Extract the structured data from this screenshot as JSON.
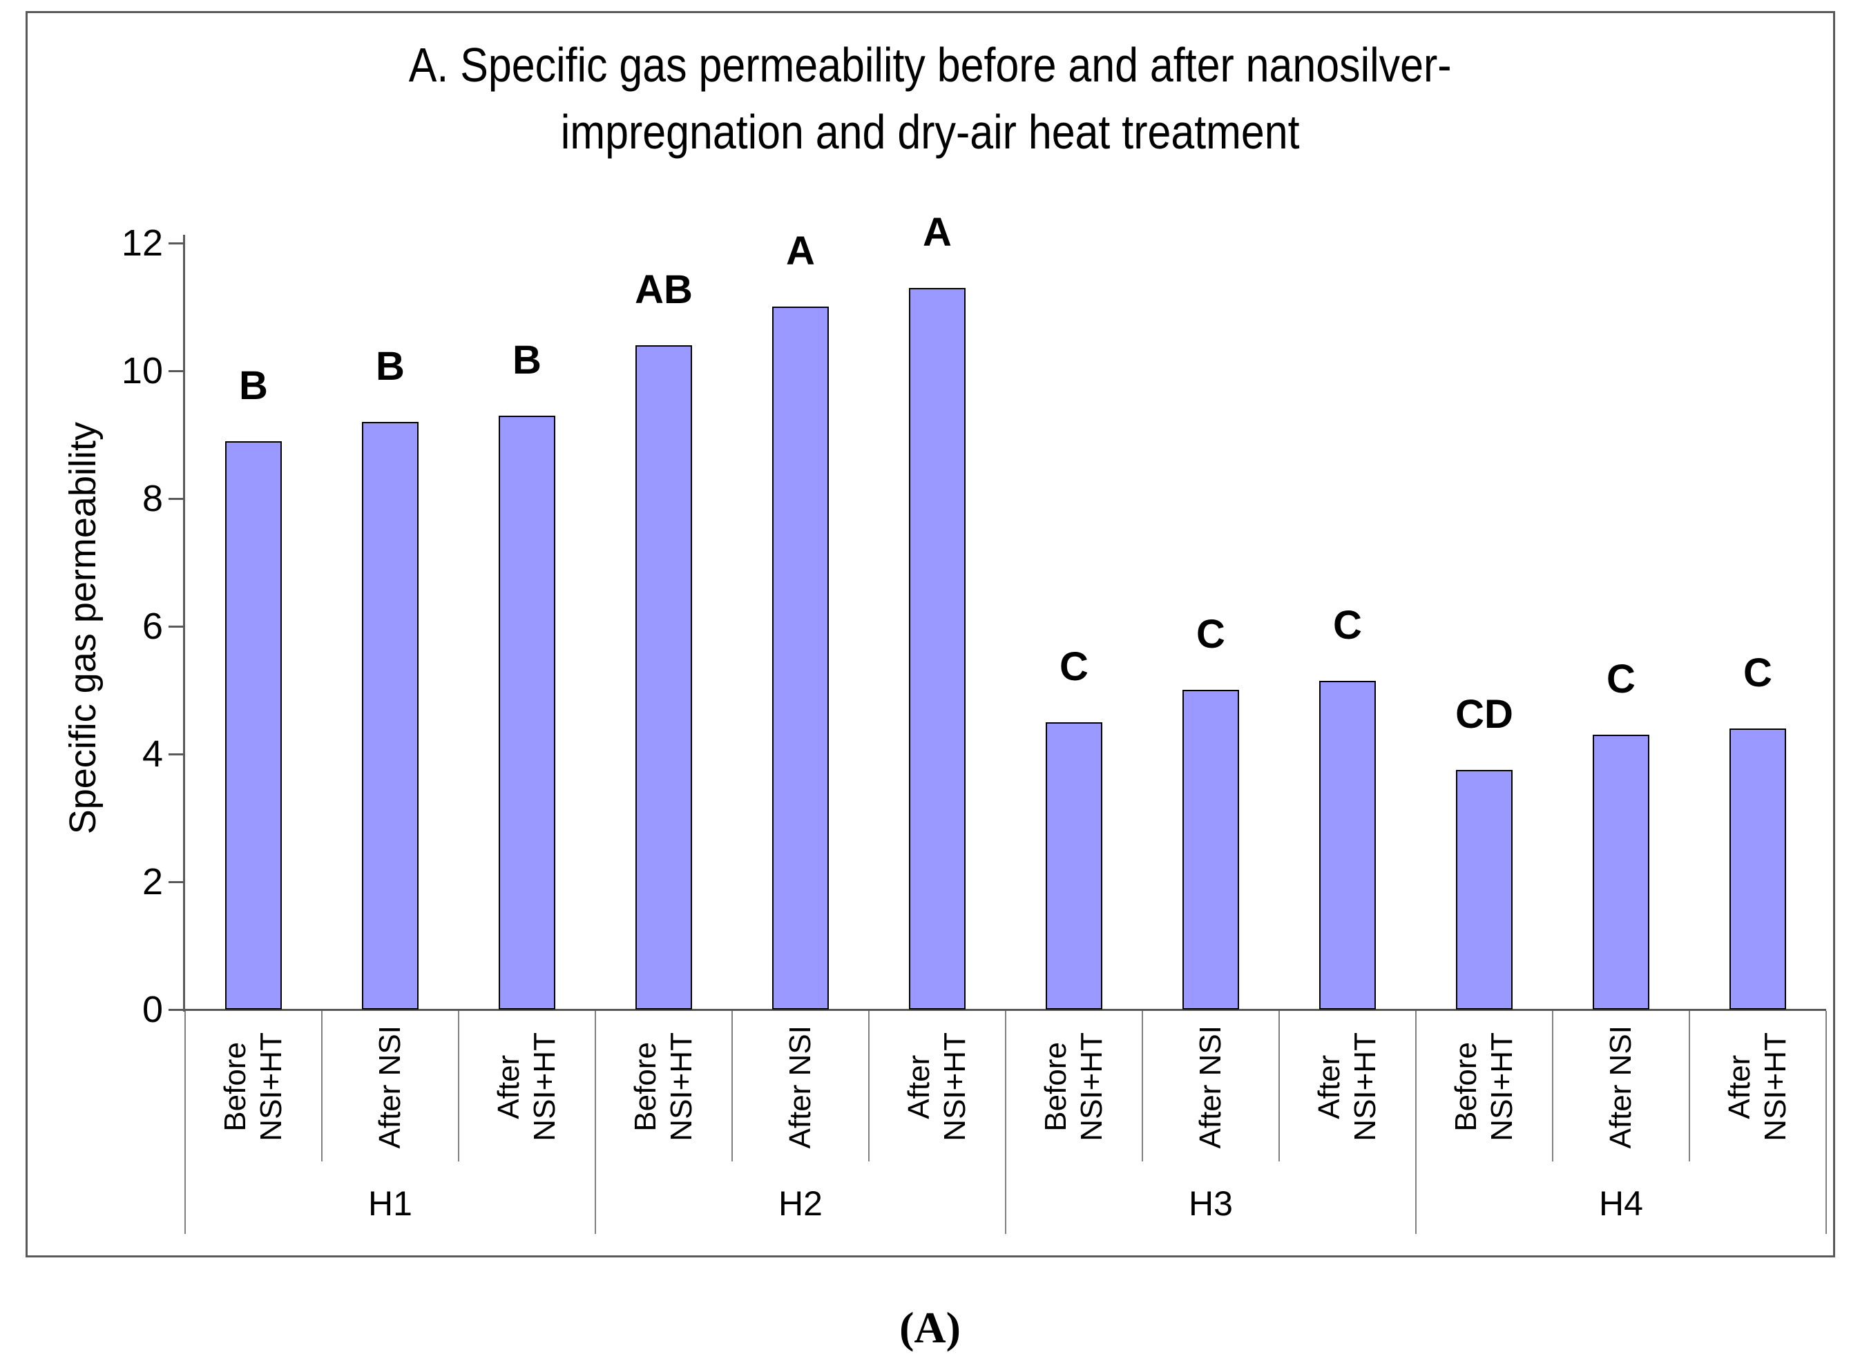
{
  "figure": {
    "caption": "(A)"
  },
  "chart_data": {
    "type": "bar",
    "title": "A. Specific gas permeability before and after nanosilver-impregnation and dry-air heat treatment",
    "title_lines": [
      "A. Specific gas permeability before and after nanosilver-",
      "impregnation and dry-air heat treatment"
    ],
    "ylabel": "Specific gas permeability",
    "xlabel": "",
    "ylim": [
      0,
      12
    ],
    "yticks": [
      0,
      2,
      4,
      6,
      8,
      10,
      12
    ],
    "grid": false,
    "legend": false,
    "bar_color": "#9999FF",
    "bar_border_color": "#000000",
    "categories": [
      "Before NSI+HT",
      "After NSI",
      "After NSI+HT"
    ],
    "groups": [
      {
        "label": "H1",
        "bars": [
          {
            "category": "Before NSI+HT",
            "category_lines": "Before\nNSI+HT",
            "value": 8.9,
            "letter": "B"
          },
          {
            "category": "After NSI",
            "category_lines": "After NSI",
            "value": 9.2,
            "letter": "B"
          },
          {
            "category": "After NSI+HT",
            "category_lines": "After\nNSI+HT",
            "value": 9.3,
            "letter": "B"
          }
        ]
      },
      {
        "label": "H2",
        "bars": [
          {
            "category": "Before NSI+HT",
            "category_lines": "Before\nNSI+HT",
            "value": 10.4,
            "letter": "AB"
          },
          {
            "category": "After NSI",
            "category_lines": "After NSI",
            "value": 11.0,
            "letter": "A"
          },
          {
            "category": "After NSI+HT",
            "category_lines": "After\nNSI+HT",
            "value": 11.3,
            "letter": "A"
          }
        ]
      },
      {
        "label": "H3",
        "bars": [
          {
            "category": "Before NSI+HT",
            "category_lines": "Before\nNSI+HT",
            "value": 4.5,
            "letter": "C"
          },
          {
            "category": "After NSI",
            "category_lines": "After NSI",
            "value": 5.0,
            "letter": "C"
          },
          {
            "category": "After NSI+HT",
            "category_lines": "After\nNSI+HT",
            "value": 5.15,
            "letter": "C"
          }
        ]
      },
      {
        "label": "H4",
        "bars": [
          {
            "category": "Before NSI+HT",
            "category_lines": "Before\nNSI+HT",
            "value": 3.75,
            "letter": "CD"
          },
          {
            "category": "After NSI",
            "category_lines": "After NSI",
            "value": 4.3,
            "letter": "C"
          },
          {
            "category": "After NSI+HT",
            "category_lines": "After\nNSI+HT",
            "value": 4.4,
            "letter": "C"
          }
        ]
      }
    ]
  }
}
